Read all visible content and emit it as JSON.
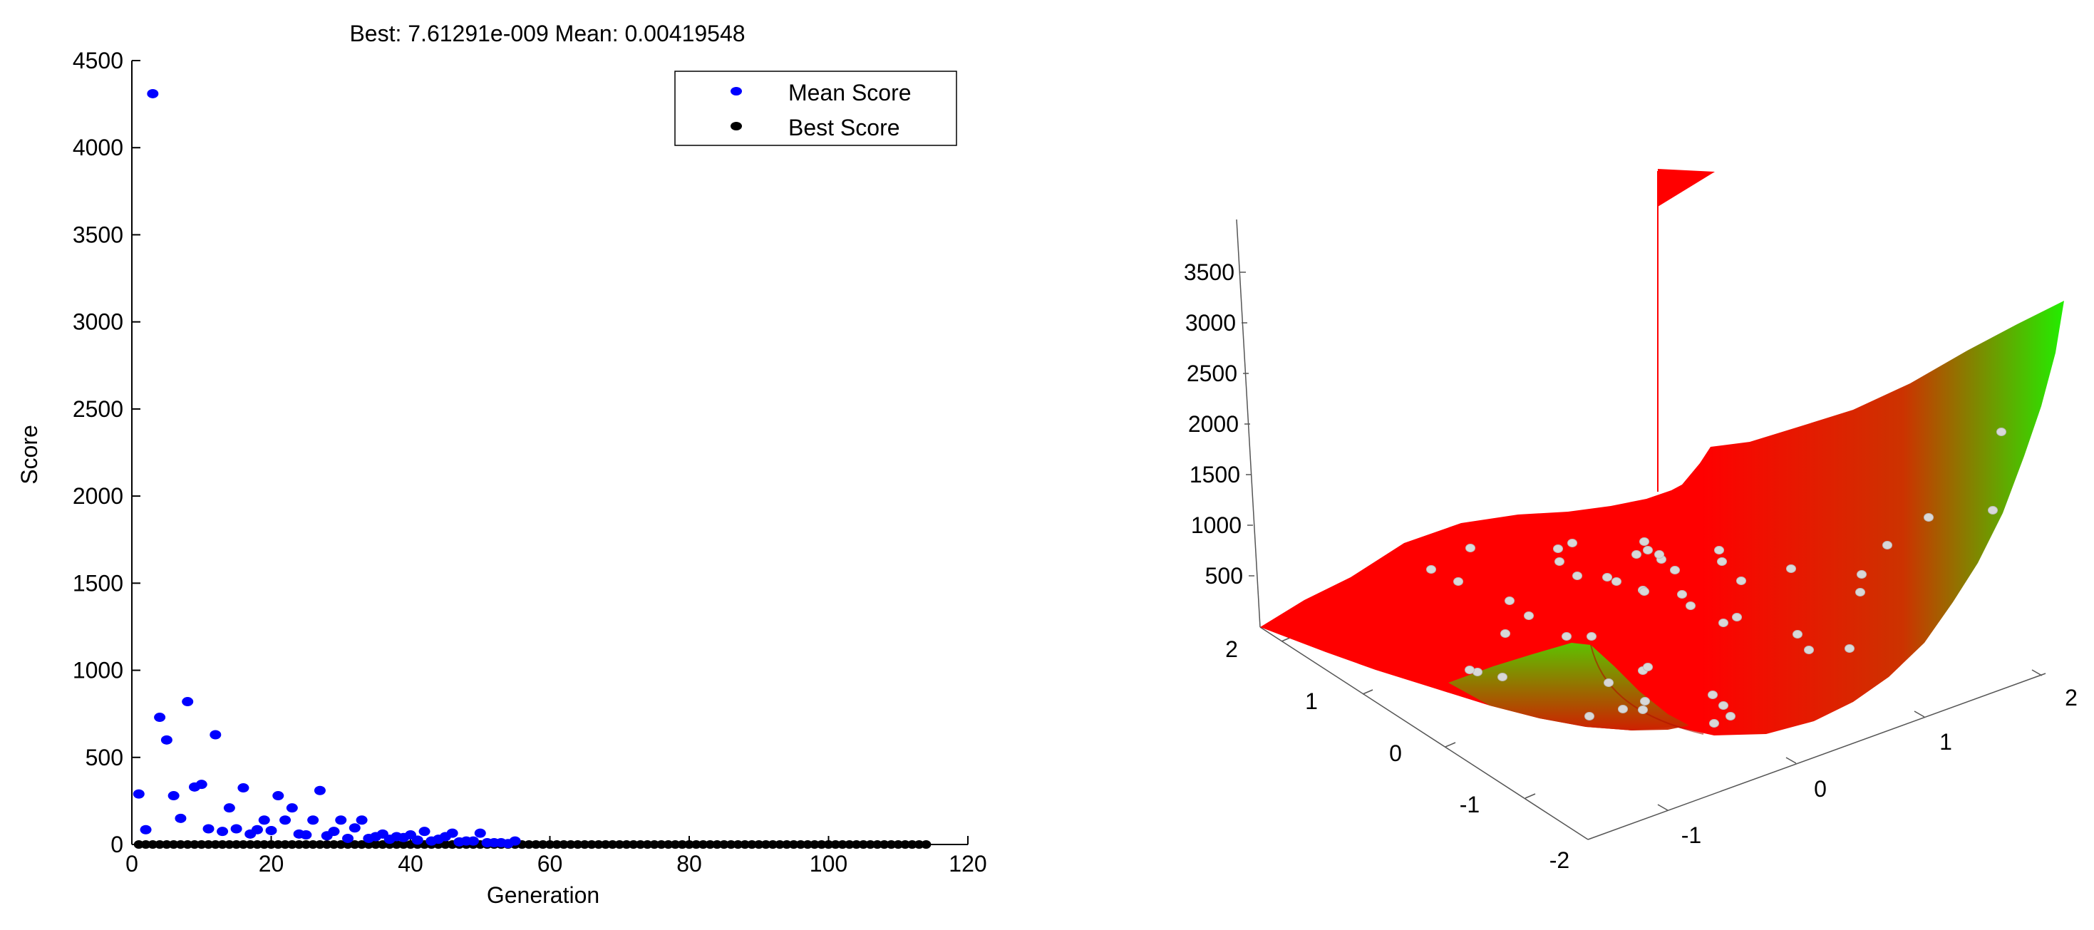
{
  "chart_data": [
    {
      "type": "scatter",
      "title": "Best: 7.61291e-009 Mean: 0.00419548",
      "xlabel": "Generation",
      "ylabel": "Score",
      "xlim": [
        0,
        120
      ],
      "ylim": [
        0,
        4500
      ],
      "xticks": [
        "0",
        "20",
        "40",
        "60",
        "80",
        "100",
        "120"
      ],
      "yticks": [
        "0",
        "500",
        "1000",
        "1500",
        "2000",
        "2500",
        "3000",
        "3500",
        "4000",
        "4500"
      ],
      "legend_position": "top-right",
      "grid": false,
      "colors": {
        "mean": "#0000ff",
        "best": "#000000"
      },
      "series": [
        {
          "name": "Mean Score",
          "x": [
            1,
            2,
            3,
            4,
            5,
            6,
            7,
            8,
            9,
            10,
            11,
            12,
            13,
            14,
            15,
            16,
            17,
            18,
            19,
            20,
            21,
            22,
            23,
            24,
            25,
            26,
            27,
            28,
            29,
            30,
            31,
            32,
            33,
            34,
            35,
            36,
            37,
            38,
            39,
            40,
            41,
            42,
            43,
            44,
            45,
            46,
            47,
            48,
            49,
            50,
            51,
            52,
            53,
            54,
            55
          ],
          "values": [
            290,
            85,
            4310,
            730,
            600,
            280,
            150,
            820,
            330,
            345,
            90,
            630,
            75,
            210,
            90,
            325,
            60,
            85,
            140,
            80,
            280,
            140,
            210,
            60,
            55,
            140,
            310,
            50,
            75,
            140,
            35,
            95,
            140,
            35,
            45,
            60,
            30,
            45,
            40,
            55,
            25,
            75,
            20,
            30,
            45,
            65,
            15,
            20,
            20,
            65,
            10,
            10,
            10,
            5,
            20
          ]
        },
        {
          "name": "Best Score",
          "x_range": [
            1,
            114
          ],
          "constant_value": 0
        }
      ]
    },
    {
      "type": "surface",
      "title": "",
      "x_ticks": [
        "-2",
        "-1",
        "0",
        "1",
        "2"
      ],
      "y_ticks": [
        "-2",
        "-1",
        "0",
        "1",
        "2"
      ],
      "z_ticks": [
        "500",
        "1000",
        "1500",
        "2000",
        "2500",
        "3000",
        "3500"
      ],
      "colormap": [
        "#ff0000",
        "#22ee00"
      ],
      "marker_color": "#d8d8d8",
      "flag_color": "#ff0000"
    }
  ]
}
